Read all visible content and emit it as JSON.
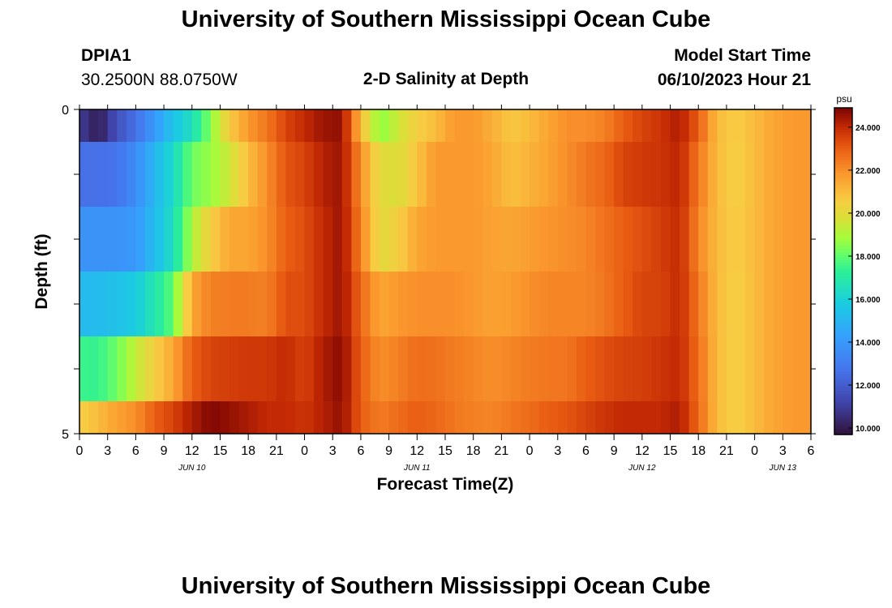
{
  "page": {
    "title": "University of Southern Mississippi Ocean Cube",
    "title_repeat": "University of Southern Mississippi Ocean Cube",
    "station_id": "DPIA1",
    "station_coords": "30.2500N  88.0750W",
    "model_start_label": "Model Start Time",
    "model_start_value": "06/10/2023 Hour 21"
  },
  "chart_data": {
    "type": "heatmap",
    "title": "2-D Salinity at Depth",
    "xlabel": "Forecast Time(Z)",
    "ylabel": "Depth (ft)",
    "colorbar_unit": "psu",
    "colorbar_ticks": [
      "24.000",
      "22.000",
      "20.000",
      "18.000",
      "16.000",
      "14.000",
      "12.000",
      "10.000"
    ],
    "colorbar_range": [
      9.7,
      24.9
    ],
    "x_tick_labels": [
      "0",
      "3",
      "6",
      "9",
      "12",
      "15",
      "18",
      "21",
      "0",
      "3",
      "6",
      "9",
      "12",
      "15",
      "18",
      "21",
      "0",
      "3",
      "6",
      "9",
      "12",
      "15",
      "18",
      "21",
      "0",
      "3",
      "6"
    ],
    "date_labels": [
      {
        "label": "JUN 10",
        "hour": 12
      },
      {
        "label": "JUN 11",
        "hour": 36
      },
      {
        "label": "JUN 12",
        "hour": 60
      },
      {
        "label": "JUN 13",
        "hour": 75
      }
    ],
    "y_tick_labels": [
      "0",
      "5"
    ],
    "ylim": [
      0,
      5
    ],
    "x_hours": [
      0,
      78
    ],
    "depth_layers": 5,
    "anchors": {
      "hours": [
        0,
        2,
        4,
        6,
        8,
        10,
        12,
        14,
        16,
        18,
        20,
        22,
        24,
        26,
        28,
        30,
        32,
        34,
        36,
        38,
        40,
        42,
        44,
        46,
        48,
        50,
        52,
        54,
        56,
        58,
        60,
        62,
        64,
        66,
        68,
        70,
        72,
        74,
        76,
        78
      ],
      "rows": [
        [
          11.0,
          10.0,
          11.6,
          12.6,
          14.0,
          15.5,
          16.5,
          18.5,
          20.6,
          21.8,
          22.5,
          23.5,
          24.0,
          24.5,
          24.6,
          21.0,
          18.5,
          19.5,
          20.5,
          21.0,
          21.8,
          21.8,
          21.3,
          20.7,
          21.0,
          21.5,
          22.0,
          22.0,
          22.3,
          23.0,
          23.5,
          23.8,
          24.3,
          23.0,
          21.0,
          20.6,
          21.0,
          21.5,
          21.8,
          21.8
        ],
        [
          12.6,
          12.6,
          12.7,
          13.6,
          15.0,
          16.3,
          18.2,
          18.7,
          19.5,
          21.0,
          22.0,
          23.2,
          23.5,
          24.2,
          24.5,
          22.0,
          20.0,
          19.8,
          20.8,
          21.8,
          21.8,
          21.8,
          21.5,
          20.9,
          21.2,
          21.6,
          22.0,
          22.5,
          22.8,
          23.5,
          23.7,
          23.8,
          24.1,
          22.5,
          21.0,
          20.5,
          21.0,
          21.5,
          21.8,
          21.8
        ],
        [
          13.8,
          13.8,
          13.8,
          14.0,
          15.2,
          16.5,
          19.0,
          20.5,
          21.5,
          21.5,
          22.0,
          23.0,
          23.3,
          24.0,
          24.5,
          22.3,
          20.0,
          20.5,
          21.5,
          21.8,
          21.8,
          21.8,
          21.6,
          21.5,
          21.7,
          21.9,
          22.0,
          22.2,
          22.6,
          23.0,
          23.3,
          23.6,
          24.0,
          22.2,
          21.0,
          20.6,
          21.0,
          21.5,
          21.8,
          21.8
        ],
        [
          15.2,
          15.2,
          15.4,
          15.8,
          16.8,
          18.0,
          21.5,
          22.3,
          22.4,
          22.4,
          22.3,
          23.3,
          23.3,
          24.0,
          24.5,
          22.8,
          21.5,
          21.8,
          22.0,
          22.0,
          22.0,
          21.8,
          21.6,
          21.7,
          22.0,
          22.2,
          22.2,
          22.2,
          22.5,
          23.0,
          23.5,
          23.5,
          24.0,
          22.5,
          21.0,
          20.5,
          21.0,
          21.5,
          21.8,
          21.8
        ],
        [
          17.5,
          17.4,
          18.2,
          19.3,
          20.5,
          21.5,
          23.0,
          23.5,
          23.6,
          23.7,
          23.7,
          24.0,
          23.5,
          24.3,
          24.7,
          23.0,
          22.0,
          22.3,
          22.7,
          22.6,
          22.4,
          22.2,
          22.0,
          22.2,
          22.4,
          22.5,
          22.5,
          23.0,
          23.3,
          23.5,
          23.6,
          23.8,
          24.0,
          22.7,
          21.0,
          20.5,
          21.0,
          21.5,
          21.8,
          21.8
        ],
        [
          20.5,
          21.0,
          21.6,
          22.0,
          23.0,
          23.5,
          24.3,
          24.8,
          24.6,
          24.3,
          24.0,
          24.0,
          23.8,
          24.2,
          24.6,
          23.0,
          22.4,
          22.7,
          23.0,
          22.8,
          22.5,
          22.3,
          22.2,
          22.5,
          22.7,
          23.0,
          23.2,
          23.5,
          23.8,
          24.0,
          24.0,
          24.0,
          24.3,
          22.8,
          21.0,
          20.5,
          21.0,
          21.5,
          21.8,
          21.8
        ]
      ]
    }
  }
}
